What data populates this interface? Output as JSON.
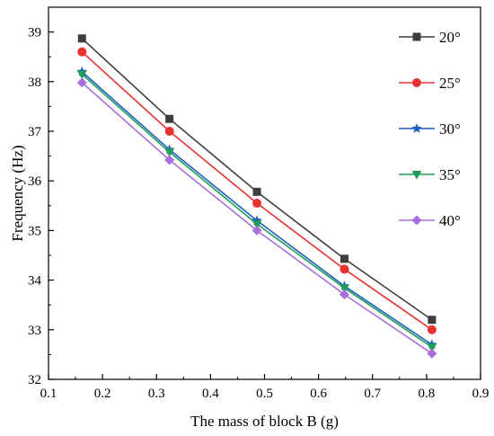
{
  "chart_data": {
    "type": "line",
    "xlabel": "The mass of block B (g)",
    "ylabel": "Frequency (Hz)",
    "xlim": [
      0.1,
      0.9
    ],
    "ylim": [
      32,
      39.5
    ],
    "x_ticks": [
      "0.1",
      "0.2",
      "0.3",
      "0.4",
      "0.5",
      "0.6",
      "0.7",
      "0.8",
      "0.9"
    ],
    "y_ticks": [
      "32",
      "33",
      "34",
      "35",
      "36",
      "37",
      "38",
      "39"
    ],
    "x": [
      0.162,
      0.324,
      0.486,
      0.648,
      0.81
    ],
    "legend_position": "top-right",
    "grid": false,
    "series": [
      {
        "name": "20°",
        "marker": "square",
        "color": "#3d3d3d",
        "values": [
          38.87,
          37.25,
          35.78,
          34.43,
          33.2
        ]
      },
      {
        "name": "25°",
        "marker": "circle",
        "color": "#e8322d",
        "values": [
          38.6,
          37.0,
          35.55,
          34.22,
          33.0
        ]
      },
      {
        "name": "30°",
        "marker": "star",
        "color": "#1f5fbf",
        "values": [
          38.2,
          36.63,
          35.2,
          33.88,
          32.7
        ]
      },
      {
        "name": "35°",
        "marker": "triangle-down",
        "color": "#1e9e5a",
        "values": [
          38.15,
          36.58,
          35.13,
          33.84,
          32.65
        ]
      },
      {
        "name": "40°",
        "marker": "diamond",
        "color": "#a86fd9",
        "values": [
          37.98,
          36.42,
          35.0,
          33.71,
          32.52
        ]
      }
    ]
  }
}
